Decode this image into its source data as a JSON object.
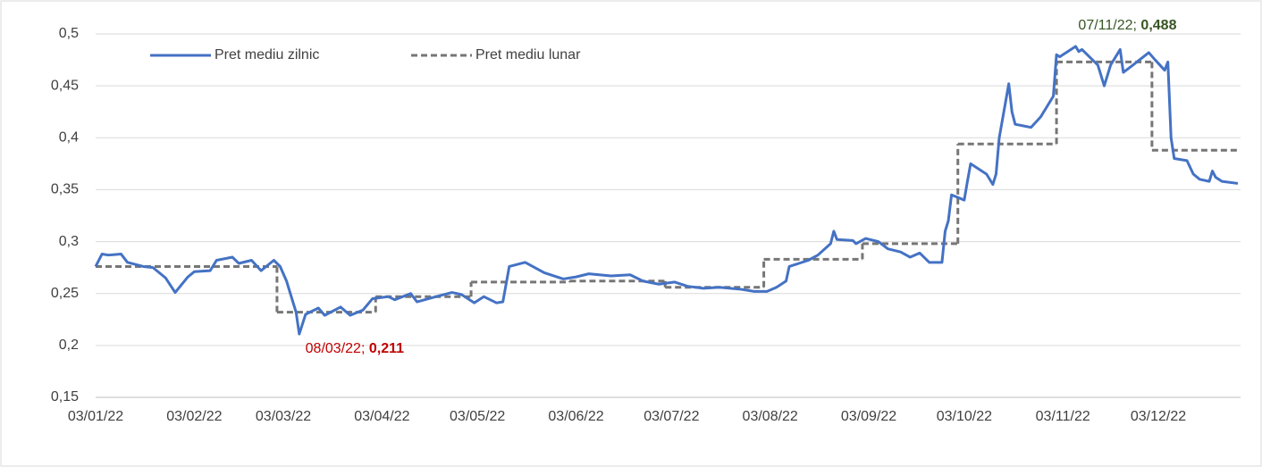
{
  "chart_data": {
    "type": "line",
    "xlim": [
      "2022-01-03",
      "2022-12-28"
    ],
    "xticks": [
      {
        "value": "2022-01-03",
        "label": "03/01/22"
      },
      {
        "value": "2022-02-03",
        "label": "03/02/22"
      },
      {
        "value": "2022-03-03",
        "label": "03/03/22"
      },
      {
        "value": "2022-04-03",
        "label": "03/04/22"
      },
      {
        "value": "2022-05-03",
        "label": "03/05/22"
      },
      {
        "value": "2022-06-03",
        "label": "03/06/22"
      },
      {
        "value": "2022-07-03",
        "label": "03/07/22"
      },
      {
        "value": "2022-08-03",
        "label": "03/08/22"
      },
      {
        "value": "2022-09-03",
        "label": "03/09/22"
      },
      {
        "value": "2022-10-03",
        "label": "03/10/22"
      },
      {
        "value": "2022-11-03",
        "label": "03/11/22"
      },
      {
        "value": "2022-12-03",
        "label": "03/12/22"
      }
    ],
    "ylim": [
      0.15,
      0.5
    ],
    "yticks": [
      {
        "value": 0.15,
        "label": "0,15"
      },
      {
        "value": 0.2,
        "label": "0,2"
      },
      {
        "value": 0.25,
        "label": "0,25"
      },
      {
        "value": 0.3,
        "label": "0,3"
      },
      {
        "value": 0.35,
        "label": "0,35"
      },
      {
        "value": 0.4,
        "label": "0,4"
      },
      {
        "value": 0.45,
        "label": "0,45"
      },
      {
        "value": 0.5,
        "label": "0,5"
      }
    ],
    "grid": true,
    "legend": "top-left",
    "series": [
      {
        "name": "Pret mediu zilnic",
        "color": "#4472c4",
        "style": "solid",
        "x": [
          "2022-01-03",
          "2022-01-05",
          "2022-01-07",
          "2022-01-11",
          "2022-01-13",
          "2022-01-18",
          "2022-01-21",
          "2022-01-25",
          "2022-01-28",
          "2022-02-01",
          "2022-02-03",
          "2022-02-08",
          "2022-02-10",
          "2022-02-15",
          "2022-02-17",
          "2022-02-21",
          "2022-02-24",
          "2022-02-28",
          "2022-03-02",
          "2022-03-04",
          "2022-03-07",
          "2022-03-08",
          "2022-03-10",
          "2022-03-14",
          "2022-03-16",
          "2022-03-21",
          "2022-03-24",
          "2022-03-28",
          "2022-03-31",
          "2022-04-05",
          "2022-04-07",
          "2022-04-12",
          "2022-04-14",
          "2022-04-20",
          "2022-04-25",
          "2022-04-28",
          "2022-05-02",
          "2022-05-05",
          "2022-05-09",
          "2022-05-11",
          "2022-05-13",
          "2022-05-18",
          "2022-05-24",
          "2022-05-30",
          "2022-06-03",
          "2022-06-07",
          "2022-06-14",
          "2022-06-20",
          "2022-06-24",
          "2022-06-29",
          "2022-07-04",
          "2022-07-08",
          "2022-07-13",
          "2022-07-18",
          "2022-07-25",
          "2022-07-29",
          "2022-08-02",
          "2022-08-05",
          "2022-08-08",
          "2022-08-09",
          "2022-08-12",
          "2022-08-15",
          "2022-08-18",
          "2022-08-22",
          "2022-08-23",
          "2022-08-24",
          "2022-08-29",
          "2022-08-30",
          "2022-09-02",
          "2022-09-06",
          "2022-09-09",
          "2022-09-13",
          "2022-09-16",
          "2022-09-19",
          "2022-09-22",
          "2022-09-26",
          "2022-09-27",
          "2022-09-28",
          "2022-09-29",
          "2022-10-03",
          "2022-10-04",
          "2022-10-05",
          "2022-10-10",
          "2022-10-12",
          "2022-10-13",
          "2022-10-14",
          "2022-10-17",
          "2022-10-18",
          "2022-10-19",
          "2022-10-24",
          "2022-10-27",
          "2022-10-31",
          "2022-11-01",
          "2022-11-02",
          "2022-11-07",
          "2022-11-08",
          "2022-11-09",
          "2022-11-14",
          "2022-11-16",
          "2022-11-18",
          "2022-11-21",
          "2022-11-22",
          "2022-11-25",
          "2022-11-30",
          "2022-12-02",
          "2022-12-05",
          "2022-12-06",
          "2022-12-07",
          "2022-12-08",
          "2022-12-12",
          "2022-12-14",
          "2022-12-16",
          "2022-12-19",
          "2022-12-20",
          "2022-12-21",
          "2022-12-23",
          "2022-12-28"
        ],
        "values": [
          0.276,
          0.288,
          0.287,
          0.288,
          0.28,
          0.276,
          0.275,
          0.265,
          0.251,
          0.266,
          0.271,
          0.272,
          0.282,
          0.285,
          0.279,
          0.282,
          0.272,
          0.282,
          0.276,
          0.262,
          0.232,
          0.211,
          0.23,
          0.236,
          0.229,
          0.237,
          0.229,
          0.234,
          0.245,
          0.247,
          0.244,
          0.25,
          0.242,
          0.247,
          0.251,
          0.249,
          0.241,
          0.247,
          0.241,
          0.242,
          0.276,
          0.28,
          0.27,
          0.264,
          0.266,
          0.269,
          0.267,
          0.268,
          0.262,
          0.259,
          0.261,
          0.257,
          0.255,
          0.256,
          0.254,
          0.252,
          0.252,
          0.256,
          0.262,
          0.276,
          0.279,
          0.282,
          0.287,
          0.298,
          0.31,
          0.302,
          0.301,
          0.298,
          0.303,
          0.3,
          0.293,
          0.29,
          0.285,
          0.289,
          0.28,
          0.28,
          0.31,
          0.32,
          0.345,
          0.34,
          0.358,
          0.375,
          0.365,
          0.355,
          0.365,
          0.4,
          0.452,
          0.425,
          0.413,
          0.41,
          0.42,
          0.44,
          0.48,
          0.478,
          0.488,
          0.483,
          0.485,
          0.47,
          0.45,
          0.47,
          0.485,
          0.463,
          0.47,
          0.482,
          0.475,
          0.465,
          0.473,
          0.4,
          0.38,
          0.378,
          0.365,
          0.36,
          0.358,
          0.368,
          0.362,
          0.358,
          0.356
        ]
      },
      {
        "name": "Pret mediu lunar",
        "color": "#767676",
        "style": "dashed",
        "step": "post",
        "x": [
          "2022-01-03",
          "2022-03-01",
          "2022-04-01",
          "2022-05-01",
          "2022-06-01",
          "2022-07-01",
          "2022-08-01",
          "2022-09-01",
          "2022-10-01",
          "2022-11-01",
          "2022-12-01"
        ],
        "values": [
          0.276,
          0.232,
          0.247,
          0.261,
          0.262,
          0.256,
          0.283,
          0.298,
          0.394,
          0.473,
          0.388
        ]
      }
    ],
    "annotations": [
      {
        "x": "2022-03-08",
        "text": "08/03/22;",
        "value_label": "0,211",
        "color": "#c00000",
        "position": "below"
      },
      {
        "x": "2022-11-07",
        "text": "07/11/22;",
        "value_label": "0,488",
        "color": "#375623",
        "position": "above"
      }
    ]
  }
}
